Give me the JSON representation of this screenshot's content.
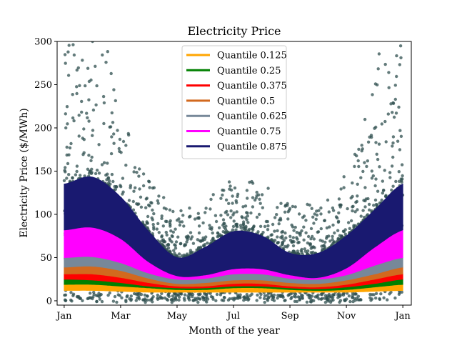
{
  "chart_data": {
    "type": "area",
    "title": "Electricity Price",
    "xlabel": "Month of the year",
    "ylabel": "Electricity Price ($/MWh)",
    "ylim": [
      -5,
      300
    ],
    "xlim": [
      -0.25,
      12.3
    ],
    "yticks": [
      0,
      50,
      100,
      150,
      200,
      250,
      300
    ],
    "xticks": [
      {
        "label": "Jan",
        "month": 0
      },
      {
        "label": "Mar",
        "month": 2
      },
      {
        "label": "May",
        "month": 4
      },
      {
        "label": "Jul",
        "month": 6
      },
      {
        "label": "Sep",
        "month": 8
      },
      {
        "label": "Nov",
        "month": 10
      },
      {
        "label": "Jan",
        "month": 12
      }
    ],
    "scatter_color": "#2f4f4f",
    "x_months": [
      0,
      1,
      2,
      3,
      4,
      5,
      6,
      7,
      8,
      9,
      10,
      11,
      12
    ],
    "series": [
      {
        "name": "Quantile 0.125",
        "color": "#ffa500",
        "lower": [
          12,
          12,
          11,
          10,
          10,
          10,
          10,
          10,
          10,
          10,
          10,
          11,
          12
        ],
        "upper": [
          19,
          19,
          17,
          15,
          13,
          13,
          15,
          15,
          13,
          12,
          13,
          16,
          19
        ]
      },
      {
        "name": "Quantile 0.25",
        "color": "#008000",
        "lower": [
          19,
          19,
          17,
          15,
          13,
          13,
          15,
          15,
          13,
          12,
          13,
          16,
          19
        ],
        "upper": [
          25,
          24,
          21,
          17,
          15,
          15,
          17,
          17,
          15,
          14,
          16,
          20,
          25
        ]
      },
      {
        "name": "Quantile 0.375",
        "color": "#ff0000",
        "lower": [
          25,
          24,
          21,
          17,
          15,
          15,
          17,
          17,
          15,
          14,
          16,
          20,
          25
        ],
        "upper": [
          31,
          31,
          27,
          21,
          17,
          17,
          20,
          20,
          17,
          16,
          19,
          25,
          31
        ]
      },
      {
        "name": "Quantile 0.5",
        "color": "#d2691e",
        "lower": [
          31,
          31,
          27,
          21,
          17,
          17,
          20,
          20,
          17,
          16,
          19,
          25,
          31
        ],
        "upper": [
          39,
          40,
          35,
          26,
          20,
          21,
          24,
          24,
          21,
          20,
          24,
          31,
          39
        ]
      },
      {
        "name": "Quantile 0.625",
        "color": "#778899",
        "lower": [
          39,
          40,
          35,
          26,
          20,
          21,
          24,
          24,
          21,
          20,
          24,
          31,
          39
        ],
        "upper": [
          50,
          51,
          44,
          32,
          25,
          26,
          31,
          31,
          26,
          25,
          30,
          41,
          50
        ]
      },
      {
        "name": "Quantile 0.75",
        "color": "#ff00ff",
        "lower": [
          50,
          51,
          44,
          32,
          25,
          26,
          31,
          31,
          26,
          25,
          30,
          41,
          50
        ],
        "upper": [
          82,
          85,
          72,
          45,
          29,
          30,
          37,
          37,
          30,
          27,
          38,
          62,
          82
        ]
      },
      {
        "name": "Quantile 0.875",
        "color": "#191970",
        "lower": [
          82,
          85,
          72,
          45,
          29,
          30,
          37,
          37,
          30,
          27,
          38,
          62,
          82
        ],
        "upper": [
          135,
          143,
          120,
          80,
          50,
          62,
          80,
          75,
          55,
          55,
          75,
          105,
          135
        ]
      }
    ]
  }
}
